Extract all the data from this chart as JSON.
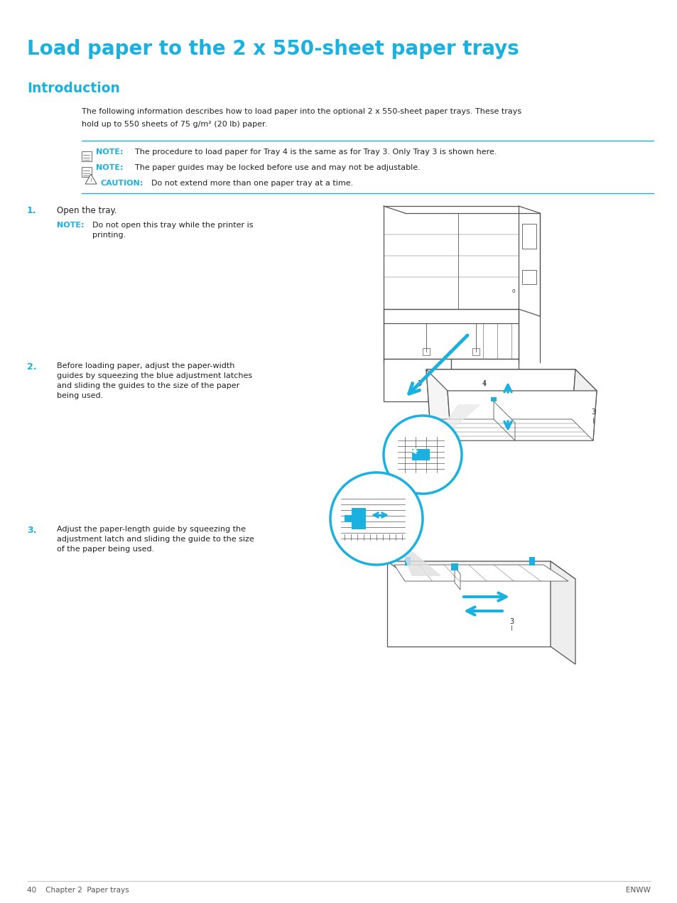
{
  "page_title": "Load paper to the 2 x 550-sheet paper trays",
  "section_title": "Introduction",
  "body_line1": "The following information describes how to load paper into the optional 2 x 550-sheet paper trays. These trays",
  "body_line2": "hold up to 550 sheets of 75 g/m² (20 lb) paper.",
  "note1_label": "NOTE:",
  "note1_text": "The procedure to load paper for Tray 4 is the same as for Tray 3. Only Tray 3 is shown here.",
  "note2_label": "NOTE:",
  "note2_text": "The paper guides may be locked before use and may not be adjustable.",
  "caution_label": "CAUTION:",
  "caution_text": "Do not extend more than one paper tray at a time.",
  "step1_num": "1.",
  "step1_text": "Open the tray.",
  "step1_note_label": "NOTE:",
  "step1_note_line1": "Do not open this tray while the printer is",
  "step1_note_line2": "printing.",
  "step2_num": "2.",
  "step2_line1": "Before loading paper, adjust the paper-width",
  "step2_line2": "guides by squeezing the blue adjustment latches",
  "step2_line3": "and sliding the guides to the size of the paper",
  "step2_line4": "being used.",
  "step3_num": "3.",
  "step3_line1": "Adjust the paper-length guide by squeezing the",
  "step3_line2": "adjustment latch and sliding the guide to the size",
  "step3_line3": "of the paper being used.",
  "footer_left": "40    Chapter 2  Paper trays",
  "footer_right": "ENWW",
  "cyan": "#1AB0E0",
  "dark": "#222222",
  "mid": "#555555",
  "light": "#aaaaaa",
  "vlight": "#dddddd",
  "bg": "#FFFFFF",
  "img1_label3": "3",
  "img1_label4": "4"
}
